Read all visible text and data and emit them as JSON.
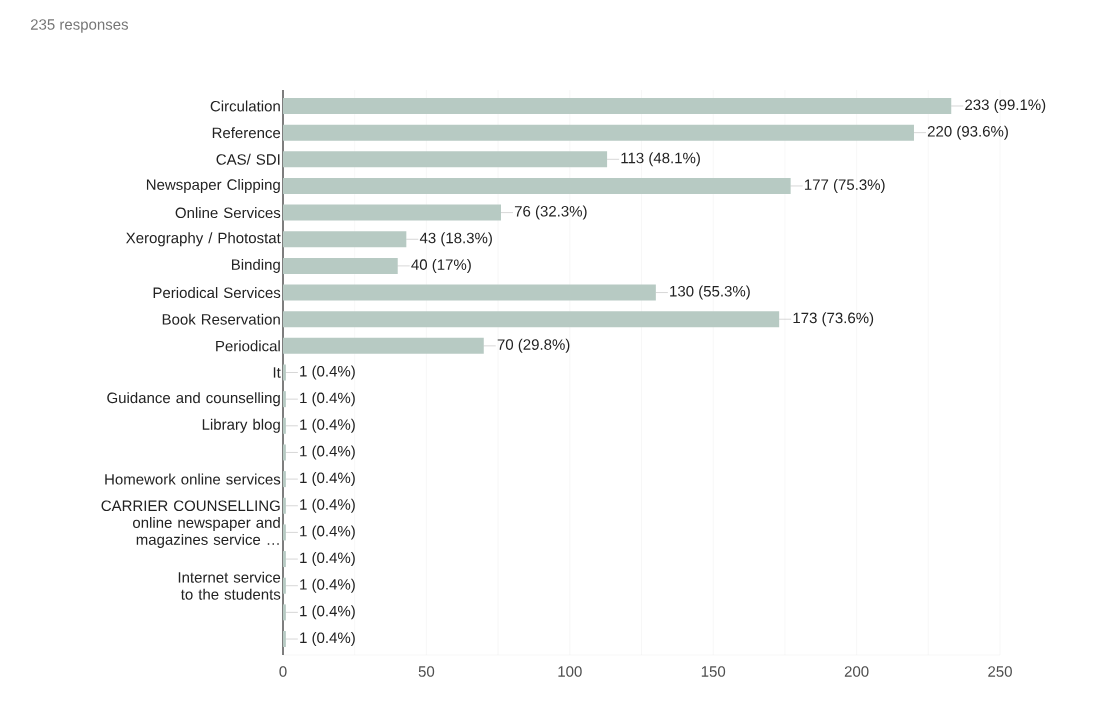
{
  "chart_data": {
    "type": "bar",
    "orientation": "horizontal",
    "title": "235 responses",
    "categories": [
      "Circulation",
      "Reference",
      "CAS/ SDI",
      "Newspaper Clipping",
      "Online Services",
      "Xerography / Photostat",
      "Binding",
      "Periodical Services",
      "Book Reservation",
      "Periodical",
      "It",
      "Guidance and counselling",
      "Library blog",
      null,
      "Homework online services",
      "CARRIER COUNSELLING",
      "online newspaper and magazines service …",
      null,
      "Internet service to the students",
      null,
      null
    ],
    "values": [
      233,
      220,
      113,
      177,
      76,
      43,
      40,
      130,
      173,
      70,
      1,
      1,
      1,
      1,
      1,
      1,
      1,
      1,
      1,
      1,
      1
    ],
    "value_labels": [
      "233 (99.1%)",
      "220 (93.6%)",
      "113 (48.1%)",
      "177 (75.3%)",
      "76 (32.3%)",
      "43 (18.3%)",
      "40 (17%)",
      "130 (55.3%)",
      "173 (73.6%)",
      "70 (29.8%)",
      "1 (0.4%)",
      "1 (0.4%)",
      "1 (0.4%)",
      "1 (0.4%)",
      "1 (0.4%)",
      "1 (0.4%)",
      "1 (0.4%)",
      "1 (0.4%)",
      "1 (0.4%)",
      "1 (0.4%)",
      "1 (0.4%)"
    ],
    "color": "#b7cac3",
    "xlim": [
      0,
      250
    ],
    "xticks": [
      0,
      {
        "value": 25,
        "label": null
      },
      50,
      {
        "value": 75,
        "label": null
      },
      100,
      {
        "value": 125,
        "label": null
      },
      150,
      {
        "value": 175,
        "label": null
      },
      200,
      {
        "value": 225,
        "label": null
      },
      250
    ],
    "grid": "x"
  }
}
